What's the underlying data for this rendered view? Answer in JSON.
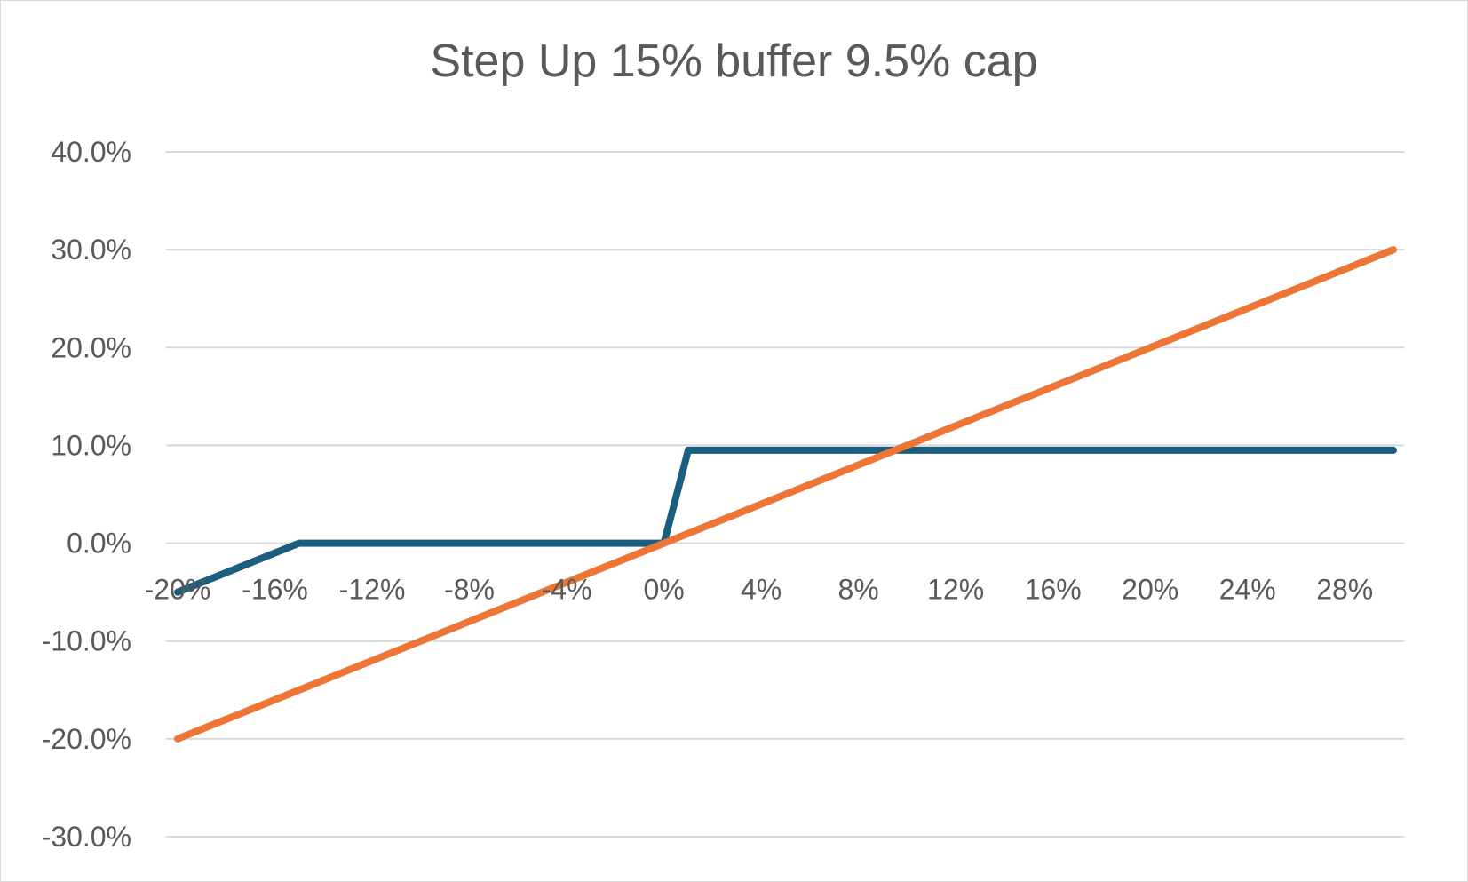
{
  "chart_data": {
    "type": "line",
    "title": "Step Up 15% buffer 9.5% cap",
    "xlabel": "",
    "ylabel": "",
    "x": [
      -0.2,
      -0.15,
      0.0,
      0.01,
      0.3
    ],
    "x_tick_labels": [
      "-20%",
      "-16%",
      "-12%",
      "-8%",
      "-4%",
      "0%",
      "4%",
      "8%",
      "12%",
      "16%",
      "20%",
      "24%",
      "28%"
    ],
    "y_tick_labels": [
      "40.0%",
      "30.0%",
      "20.0%",
      "10.0%",
      "0.0%",
      "-10.0%",
      "-20.0%",
      "-30.0%"
    ],
    "xlim": [
      -0.2,
      0.3
    ],
    "ylim": [
      -0.3,
      0.4
    ],
    "grid": true,
    "series": [
      {
        "color": "#1a5e80",
        "points": [
          [
            -0.2,
            -0.05
          ],
          [
            -0.15,
            0.0
          ],
          [
            0.0,
            0.0
          ],
          [
            0.01,
            0.095
          ],
          [
            0.3,
            0.095
          ]
        ]
      },
      {
        "color": "#ed7536",
        "points": [
          [
            -0.2,
            -0.2
          ],
          [
            0.3,
            0.3
          ]
        ]
      }
    ]
  }
}
